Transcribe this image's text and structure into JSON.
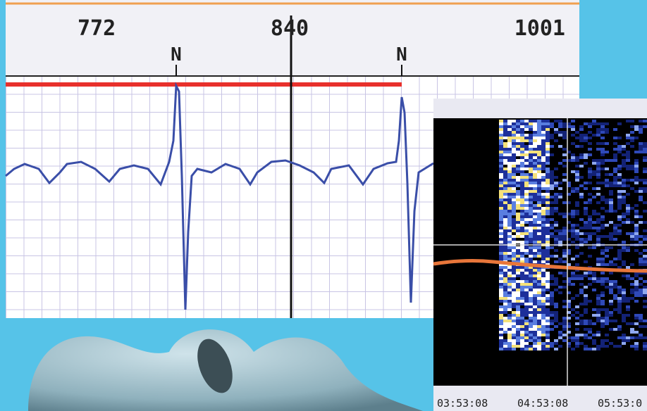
{
  "ecg": {
    "header_labels": [
      "772",
      "840",
      "1001"
    ],
    "beat_labels": [
      "N",
      "N"
    ]
  },
  "spectrogram": {
    "time_labels": [
      "03:53:08",
      "04:53:08",
      "05:53:0"
    ]
  }
}
